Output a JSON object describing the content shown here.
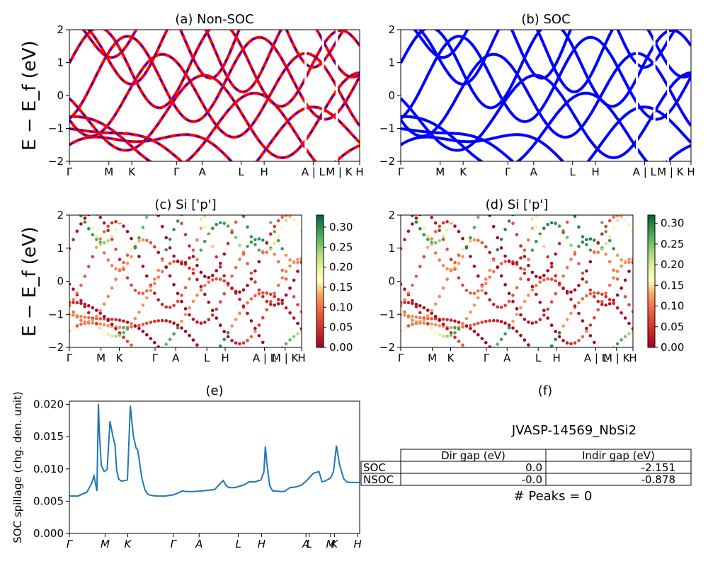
{
  "chart_data": [
    {
      "id": "a",
      "type": "line",
      "title": "(a) Non-SOC",
      "ylabel": "E − E_f (eV)",
      "ylim": [
        -2,
        2
      ],
      "yticks": [
        "2",
        "1",
        "0",
        "−1",
        "−2"
      ],
      "kticks": [
        "Γ",
        "M",
        "K",
        "Γ",
        "A",
        "L",
        "H",
        "A | L",
        "M | K",
        "H"
      ],
      "series_colors": [
        "#ff0000",
        "#0000ff"
      ],
      "note": "band lines drawn red with blue dashes"
    },
    {
      "id": "b",
      "type": "line",
      "title": "(b) SOC",
      "ylim": [
        -2,
        2
      ],
      "yticks": [
        "2",
        "1",
        "0",
        "−1",
        "−2"
      ],
      "kticks": [
        "Γ",
        "M",
        "K",
        "Γ",
        "A",
        "L",
        "H",
        "A | L",
        "M | K",
        "H"
      ],
      "series_colors": [
        "#0000ff"
      ]
    },
    {
      "id": "c",
      "type": "scatter",
      "title": "(c)  Si ['p']",
      "ylabel": "E − E_f (eV)",
      "ylim": [
        -2,
        2
      ],
      "yticks": [
        "2",
        "1",
        "0",
        "−1",
        "−2"
      ],
      "kticks": [
        "Γ",
        "M",
        "K",
        "Γ",
        "A",
        "L",
        "H",
        "A | L",
        "M | K",
        "H"
      ],
      "colorbar": {
        "ticks": [
          "0.30",
          "0.25",
          "0.20",
          "0.15",
          "0.10",
          "0.05",
          "0.00"
        ],
        "range": [
          0,
          0.33
        ],
        "cmap": "RdYlGn"
      }
    },
    {
      "id": "d",
      "type": "scatter",
      "title": "(d) Si ['p']",
      "ylim": [
        -2,
        2
      ],
      "yticks": [
        "2",
        "1",
        "0",
        "−1",
        "−2"
      ],
      "kticks": [
        "Γ",
        "M",
        "K",
        "Γ",
        "A",
        "L",
        "H",
        "A | L",
        "M | K",
        "H"
      ],
      "colorbar": {
        "ticks": [
          "0.30",
          "0.25",
          "0.20",
          "0.15",
          "0.10",
          "0.05",
          "0.00"
        ],
        "range": [
          0,
          0.32
        ],
        "cmap": "RdYlGn"
      }
    },
    {
      "id": "e",
      "type": "line",
      "title": "(e)",
      "ylabel": "SOC spillage (chg. den. unit)",
      "ylim": [
        0,
        0.0205
      ],
      "yticks": [
        "0.020",
        "0.015",
        "0.010",
        "0.005",
        "0.000"
      ],
      "kticks": [
        "Γ",
        "M",
        "K",
        "Γ",
        "A",
        "L",
        "H",
        "A",
        "L",
        "M",
        "K",
        "H"
      ],
      "color": "#1f77b4",
      "x": [
        0,
        0.03,
        0.06,
        0.075,
        0.085,
        0.095,
        0.1,
        0.103,
        0.11,
        0.12,
        0.13,
        0.14,
        0.15,
        0.157,
        0.163,
        0.17,
        0.18,
        0.19,
        0.2,
        0.21,
        0.22,
        0.23,
        0.235,
        0.24,
        0.245,
        0.25,
        0.26,
        0.27,
        0.28,
        0.3,
        0.33,
        0.36,
        0.39,
        0.4,
        0.43,
        0.46,
        0.5,
        0.53,
        0.54,
        0.55,
        0.57,
        0.6,
        0.62,
        0.64,
        0.66,
        0.67,
        0.675,
        0.68,
        0.69,
        0.7,
        0.73,
        0.74,
        0.76,
        0.78,
        0.8,
        0.82,
        0.84,
        0.86,
        0.87,
        0.88,
        0.9,
        0.91,
        0.92,
        0.93,
        0.945,
        0.955,
        0.965,
        0.975,
        0.99,
        1.0
      ],
      "y": [
        0.0058,
        0.0058,
        0.0064,
        0.0076,
        0.0089,
        0.0066,
        0.0201,
        0.016,
        0.0105,
        0.0096,
        0.0099,
        0.0174,
        0.015,
        0.0138,
        0.0098,
        0.0084,
        0.0081,
        0.0082,
        0.0083,
        0.0198,
        0.0152,
        0.0132,
        0.013,
        0.0116,
        0.01,
        0.0085,
        0.0068,
        0.0061,
        0.0059,
        0.0058,
        0.0058,
        0.006,
        0.0066,
        0.0065,
        0.0065,
        0.0066,
        0.0068,
        0.0082,
        0.0074,
        0.0071,
        0.0071,
        0.0075,
        0.008,
        0.008,
        0.0083,
        0.0095,
        0.0135,
        0.011,
        0.0074,
        0.0066,
        0.0065,
        0.0065,
        0.0071,
        0.0072,
        0.0075,
        0.0083,
        0.0093,
        0.0096,
        0.008,
        0.0081,
        0.0086,
        0.0096,
        0.0136,
        0.0108,
        0.0085,
        0.008,
        0.0079,
        0.0079,
        0.0079,
        0.0079
      ]
    }
  ],
  "panel_f": {
    "title": "(f)",
    "material": "JVASP-14569_NbSi2",
    "table": {
      "headers": [
        "",
        "Dir gap (eV)",
        "Indir gap (eV)"
      ],
      "rows": [
        [
          "SOC",
          "0.0",
          "-2.151"
        ],
        [
          "NSOC",
          "-0.0",
          "-0.878"
        ]
      ]
    },
    "peaks": "# Peaks = 0"
  }
}
